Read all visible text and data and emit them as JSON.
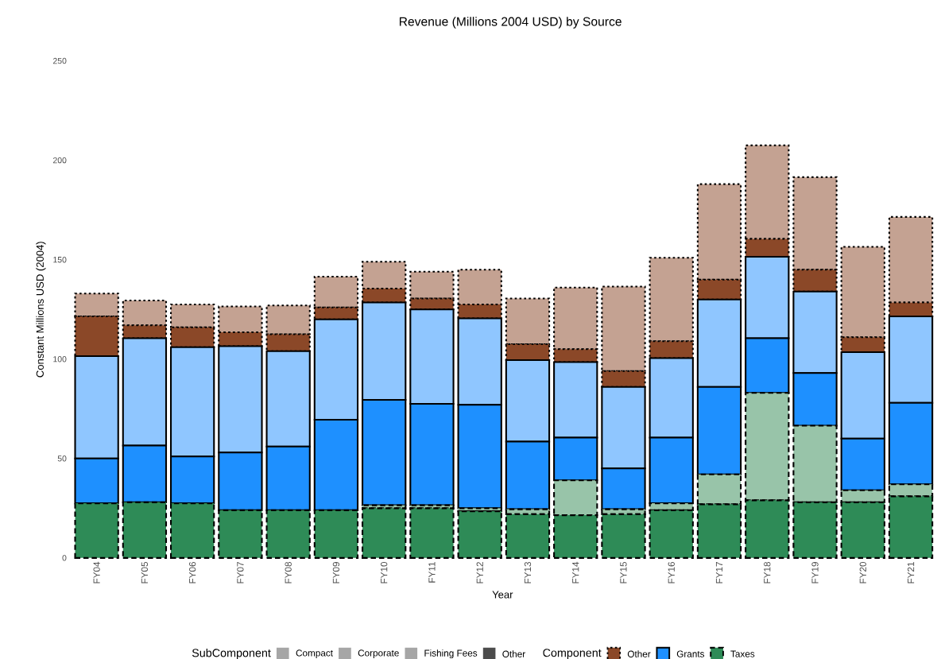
{
  "chart_data": {
    "type": "bar",
    "stacked": true,
    "title": "Revenue (Millions 2004 USD) by Source",
    "xlabel": "Year",
    "ylabel": "Constant Millions USD (2004)",
    "categories": [
      "FY04",
      "FY05",
      "FY06",
      "FY07",
      "FY08",
      "FY09",
      "FY10",
      "FY11",
      "FY12",
      "FY13",
      "FY14",
      "FY15",
      "FY16",
      "FY17",
      "FY18",
      "FY19",
      "FY20",
      "FY21"
    ],
    "series": [
      {
        "color": "#2e8b57",
        "line_style": "dashed",
        "values": [
          27.5,
          28,
          27.5,
          24,
          24,
          24,
          25,
          25,
          23.5,
          22,
          21.5,
          22,
          24,
          27,
          29,
          28,
          28,
          31
        ]
      },
      {
        "color": "#98c4a9",
        "line_style": "dashed",
        "values": [
          0,
          0,
          0,
          0,
          0,
          0,
          1.5,
          1.5,
          1.5,
          2.5,
          17.5,
          2.5,
          3.5,
          15,
          54,
          38.5,
          6,
          6
        ]
      },
      {
        "color": "#1e90ff",
        "line_style": "solid",
        "values": [
          22.5,
          28.5,
          23.5,
          29,
          32,
          45.5,
          53,
          51,
          52,
          34,
          21.5,
          20.5,
          33,
          44,
          27.5,
          26.5,
          26,
          41
        ]
      },
      {
        "color": "#8fc6ff",
        "line_style": "solid",
        "values": [
          51.5,
          54,
          55,
          53.5,
          48,
          50.5,
          49,
          47.5,
          43.5,
          41,
          38,
          41,
          40,
          44,
          41,
          41,
          43.5,
          43.5
        ]
      },
      {
        "color": "#8b4828",
        "line_style": "dotted",
        "values": [
          20,
          6.5,
          10,
          7,
          8.5,
          6,
          7,
          5.5,
          7,
          8,
          6.5,
          8,
          8.5,
          10,
          9,
          11,
          7.5,
          7
        ]
      },
      {
        "color": "#c4a292",
        "line_style": "dotted",
        "values": [
          11.5,
          12.5,
          11.5,
          13,
          14.5,
          15.5,
          13.5,
          13.5,
          17.5,
          23,
          31,
          42.5,
          42,
          48,
          47,
          46.5,
          45.5,
          43
        ]
      }
    ],
    "ylim": [
      0,
      250
    ],
    "yticks": [
      0,
      50,
      100,
      150,
      200,
      250
    ],
    "annotations": [
      "SubComponent",
      "Compact",
      "Corporate",
      "Fishing Fees",
      "Other",
      "Component",
      "Other",
      "Grants",
      "Taxes"
    ]
  }
}
